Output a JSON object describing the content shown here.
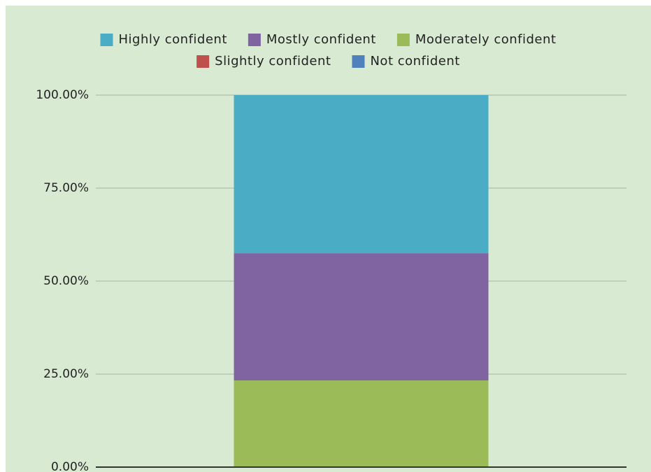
{
  "chart_data": {
    "type": "stacked_bar",
    "categories": [
      null
    ],
    "series": [
      {
        "name": "Highly confident",
        "color": "#4bacc6",
        "values": [
          42.5
        ]
      },
      {
        "name": "Mostly confident",
        "color": "#8064a2",
        "values": [
          34.2
        ]
      },
      {
        "name": "Moderately confident",
        "color": "#9bbb59",
        "values": [
          23.3
        ]
      },
      {
        "name": "Slightly confident",
        "color": "#c0504d",
        "values": [
          0
        ]
      },
      {
        "name": "Not confident",
        "color": "#4f81bd",
        "values": [
          0
        ]
      }
    ],
    "ylim": [
      0,
      100
    ],
    "yticks": [
      {
        "value": 0,
        "label": "0.00%"
      },
      {
        "value": 25,
        "label": "25.00%"
      },
      {
        "value": 50,
        "label": "50.00%"
      },
      {
        "value": 75,
        "label": "75.00%"
      },
      {
        "value": 100,
        "label": "100.00%"
      }
    ],
    "grid": true,
    "legend": "top"
  }
}
